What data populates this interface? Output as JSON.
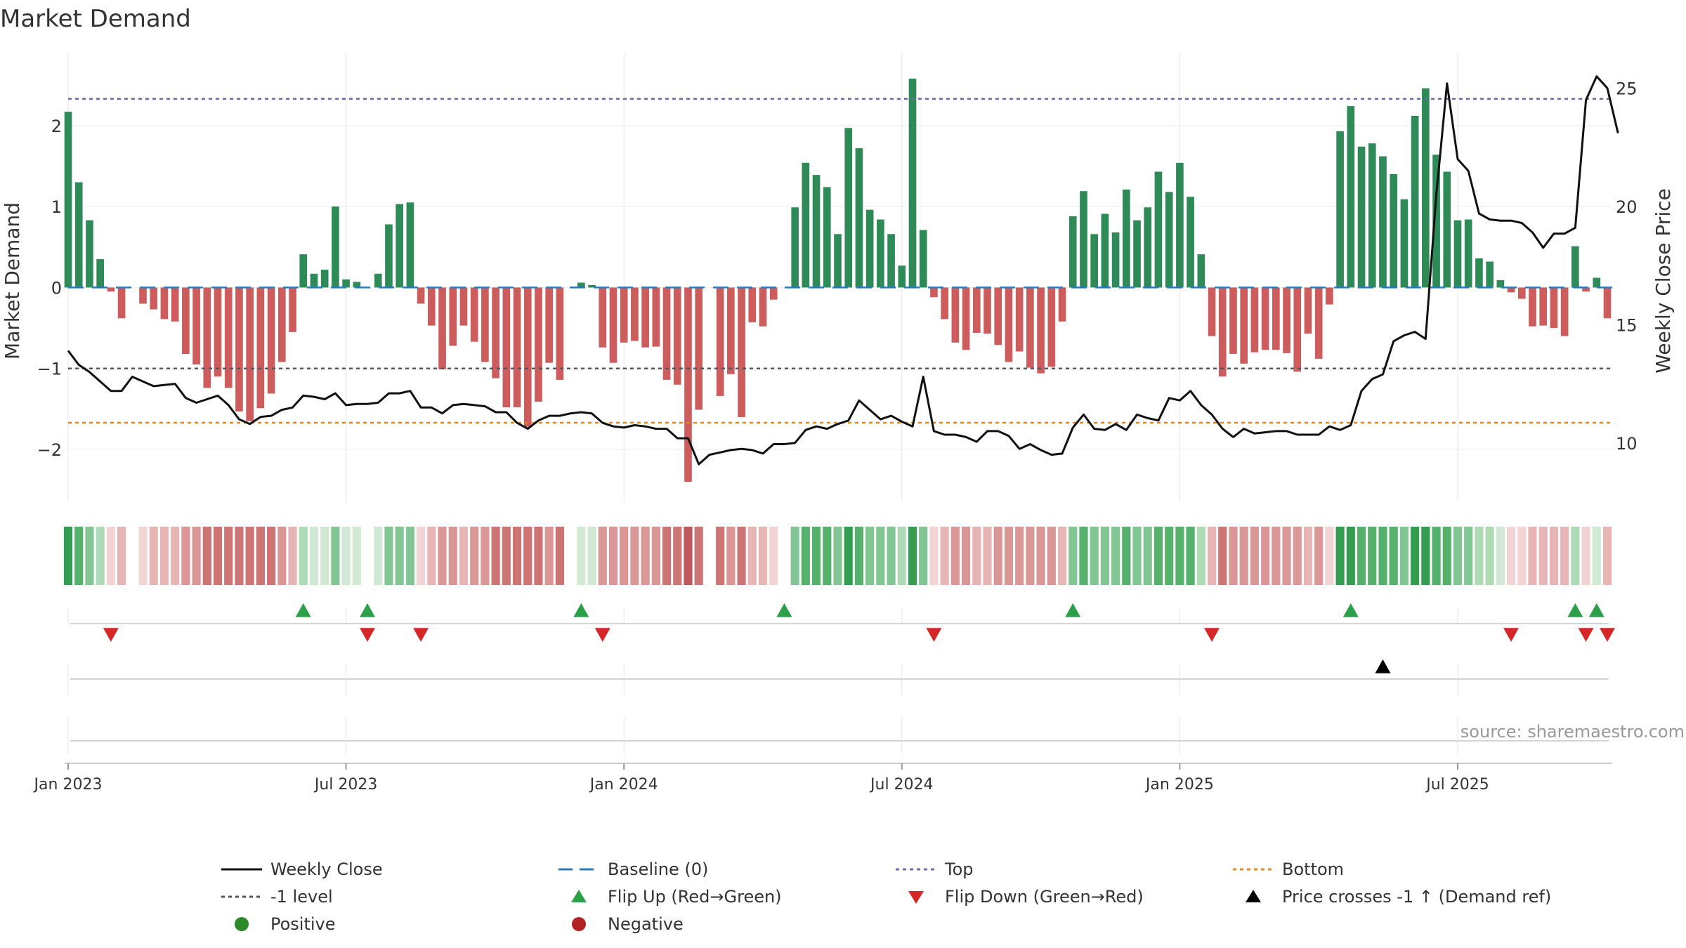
{
  "chart_data": {
    "type": "bar",
    "title": "Market Demand",
    "ylabel": "Market Demand",
    "ylabel_right": "Weekly Close Price",
    "ylim": [
      -2.65,
      2.9
    ],
    "ylim_right": [
      7.5,
      26.5
    ],
    "y_ticks": [
      2,
      1,
      0,
      -1,
      -2
    ],
    "y_tick_labels": [
      "2",
      "1",
      "0",
      "−1",
      "−2"
    ],
    "y_right_ticks": [
      25,
      20,
      15,
      10
    ],
    "y_right_tick_labels": [
      "25",
      "20",
      "15",
      "10"
    ],
    "x_ticks": [
      0,
      26,
      52,
      78,
      104,
      130
    ],
    "x_tick_labels": [
      "Jan 2023",
      "Jul 2023",
      "Jan 2024",
      "Jul 2024",
      "Jan 2025",
      "Jul 2025"
    ],
    "top_level": 2.33,
    "bottom_level": -1.67,
    "minus1_level": -1,
    "demand": [
      2.17,
      1.3,
      0.83,
      0.35,
      -0.05,
      -0.38,
      0,
      -0.2,
      -0.27,
      -0.39,
      -0.42,
      -0.82,
      -0.95,
      -1.24,
      -1.1,
      -1.24,
      -1.53,
      -1.65,
      -1.49,
      -1.31,
      -0.92,
      -0.55,
      0.41,
      0.17,
      0.22,
      1.0,
      0.1,
      0.07,
      0,
      0.17,
      0.78,
      1.03,
      1.05,
      -0.2,
      -0.47,
      -1.01,
      -0.72,
      -0.47,
      -0.67,
      -0.92,
      -1.12,
      -1.48,
      -1.48,
      -1.72,
      -1.41,
      -0.93,
      -1.14,
      0,
      0.06,
      0.03,
      -0.74,
      -0.93,
      -0.68,
      -0.66,
      -0.74,
      -0.73,
      -1.14,
      -1.2,
      -2.4,
      -1.51,
      0,
      -1.34,
      -1.07,
      -1.6,
      -0.43,
      -0.48,
      -0.15,
      0,
      0.99,
      1.54,
      1.39,
      1.24,
      0.66,
      1.97,
      1.72,
      0.96,
      0.84,
      0.66,
      0.27,
      2.58,
      0.71,
      -0.12,
      -0.39,
      -0.68,
      -0.77,
      -0.56,
      -0.57,
      -0.71,
      -0.92,
      -0.79,
      -0.99,
      -1.06,
      -0.98,
      -0.42,
      0.88,
      1.19,
      0.66,
      0.91,
      0.68,
      1.21,
      0.83,
      0.99,
      1.43,
      1.18,
      1.54,
      1.12,
      0.41,
      -0.6,
      -1.1,
      -0.82,
      -0.94,
      -0.8,
      -0.77,
      -0.77,
      -0.81,
      -1.04,
      -0.57,
      -0.88,
      -0.21,
      1.93,
      2.24,
      1.74,
      1.78,
      1.62,
      1.4,
      1.09,
      2.12,
      2.46,
      1.64,
      1.43,
      0.83,
      0.84,
      0.36,
      0.32,
      0.09,
      -0.06,
      -0.14,
      -0.48,
      -0.47,
      -0.5,
      -0.6,
      0.51,
      -0.05,
      0.12,
      -0.38
    ],
    "close": [
      13.9,
      13.3,
      13.0,
      12.6,
      12.2,
      12.2,
      12.8,
      12.6,
      12.4,
      12.45,
      12.5,
      11.9,
      11.7,
      11.85,
      12.0,
      11.6,
      11.0,
      10.8,
      11.1,
      11.15,
      11.4,
      11.5,
      12.0,
      11.95,
      11.85,
      12.1,
      11.6,
      11.65,
      11.65,
      11.7,
      12.1,
      12.1,
      12.2,
      11.5,
      11.5,
      11.25,
      11.6,
      11.65,
      11.6,
      11.55,
      11.3,
      11.3,
      10.85,
      10.6,
      10.95,
      11.15,
      11.15,
      11.25,
      11.3,
      11.25,
      10.85,
      10.7,
      10.65,
      10.75,
      10.7,
      10.6,
      10.6,
      10.2,
      10.2,
      9.1,
      9.5,
      9.6,
      9.7,
      9.75,
      9.7,
      9.55,
      9.95,
      9.95,
      10.0,
      10.55,
      10.7,
      10.6,
      10.8,
      10.95,
      11.8,
      11.4,
      11.0,
      11.15,
      10.9,
      10.7,
      12.8,
      10.5,
      10.35,
      10.35,
      10.25,
      10.05,
      10.5,
      10.5,
      10.3,
      9.75,
      9.95,
      9.7,
      9.5,
      9.55,
      10.65,
      11.2,
      10.6,
      10.55,
      10.8,
      10.55,
      11.2,
      11.05,
      10.95,
      11.9,
      11.8,
      12.2,
      11.6,
      11.2,
      10.6,
      10.25,
      10.6,
      10.4,
      10.45,
      10.5,
      10.5,
      10.35,
      10.35,
      10.35,
      10.7,
      10.55,
      10.75,
      12.2,
      12.7,
      12.9,
      14.3,
      14.55,
      14.7,
      14.4,
      20.5,
      25.2,
      22.0,
      21.5,
      19.7,
      19.45,
      19.4,
      19.4,
      19.3,
      18.9,
      18.25,
      18.85,
      18.85,
      19.1,
      24.5,
      25.5,
      25.0,
      23.1
    ],
    "flip_up_idx": [
      22,
      28,
      48,
      67,
      94,
      120,
      141,
      143
    ],
    "flip_down_idx": [
      4,
      28,
      33,
      50,
      81,
      107,
      135,
      142,
      144
    ],
    "price_cross_idx": [
      123
    ]
  },
  "source_note": "source: sharemaestro.com",
  "legend": {
    "items": [
      {
        "label": "Weekly Close",
        "kind": "line-solid",
        "color": "#111111"
      },
      {
        "label": "Baseline (0)",
        "kind": "line-dash",
        "color": "#2b7bb9"
      },
      {
        "label": "Top",
        "kind": "line-dot",
        "color": "#6b6bb0"
      },
      {
        "label": "Bottom",
        "kind": "line-dot",
        "color": "#e08a1e"
      },
      {
        "label": "-1 level",
        "kind": "line-dot",
        "color": "#555566"
      },
      {
        "label": "Flip Up (Red→Green)",
        "kind": "tri-up",
        "color": "#2ca048"
      },
      {
        "label": "Flip Down (Green→Red)",
        "kind": "tri-down",
        "color": "#d62728"
      },
      {
        "label": "Price crosses -1 ↑ (Demand ref)",
        "kind": "tri-up",
        "color": "#000000"
      },
      {
        "label": "Positive",
        "kind": "dot",
        "color": "#2a8a2a"
      },
      {
        "label": "Negative",
        "kind": "dot",
        "color": "#b22222"
      }
    ]
  },
  "colors": {
    "positive_bar": "#2e8b57",
    "negative_bar": "#cd5c5c",
    "baseline": "#2b7bb9",
    "top": "#6b6bb0",
    "bottom": "#e08a1e",
    "minus1": "#555566",
    "close_line": "#111111"
  }
}
